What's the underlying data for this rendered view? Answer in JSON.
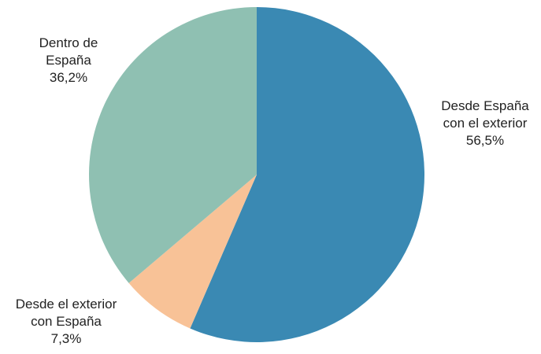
{
  "chart_data": {
    "type": "pie",
    "slices": [
      {
        "label_lines": [
          "Desde España",
          "con el exterior"
        ],
        "value_label": "56,5%",
        "value": 56.5,
        "color": "#3a89b3"
      },
      {
        "label_lines": [
          "Desde el exterior",
          "con España"
        ],
        "value_label": "7,3%",
        "value": 7.3,
        "color": "#f8c297"
      },
      {
        "label_lines": [
          "Dentro de",
          "España"
        ],
        "value_label": "36,2%",
        "value": 36.2,
        "color": "#8fc0b2"
      }
    ]
  }
}
